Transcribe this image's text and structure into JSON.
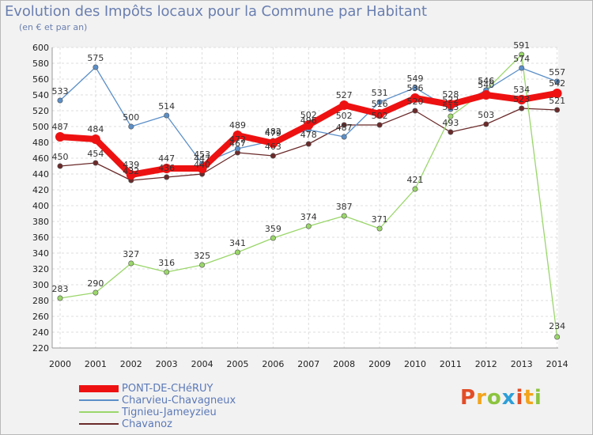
{
  "header": {
    "title": "Evolution des Impôts locaux pour la Commune par Habitant",
    "subtitle": "(en € et par an)"
  },
  "logo": {
    "text": "Proxiti",
    "letters": [
      {
        "ch": "P",
        "color": "#e24d27"
      },
      {
        "ch": "r",
        "color": "#f2a41c"
      },
      {
        "ch": "o",
        "color": "#8cc43f"
      },
      {
        "ch": "x",
        "color": "#2d9fd8"
      },
      {
        "ch": "i",
        "color": "#e24d27"
      },
      {
        "ch": "t",
        "color": "#f2a41c"
      },
      {
        "ch": "i",
        "color": "#8cc43f"
      }
    ]
  },
  "chart_data": {
    "type": "line",
    "title": "Evolution des Impôts locaux pour la Commune par Habitant",
    "subtitle": "(en € et par an)",
    "xlabel": "",
    "ylabel": "",
    "x": [
      "2000",
      "2001",
      "2002",
      "2003",
      "2004",
      "2005",
      "2006",
      "2007",
      "2008",
      "2009",
      "2010",
      "2011",
      "2012",
      "2013",
      "2014"
    ],
    "ylim": [
      220,
      600
    ],
    "yticks": [
      220,
      240,
      260,
      280,
      300,
      320,
      340,
      360,
      380,
      400,
      420,
      440,
      460,
      480,
      500,
      520,
      540,
      560,
      580,
      600
    ],
    "grid": true,
    "legend_position": "bottom-left",
    "series": [
      {
        "name": "PONT-DE-CHéRUY",
        "color": "#ee1111",
        "values": [
          487,
          484,
          439,
          447,
          447,
          489,
          479,
          502,
          527,
          516,
          536,
          528,
          540,
          534,
          542
        ]
      },
      {
        "name": "Charvieu-Chavagneux",
        "color": "#5b8fc8",
        "values": [
          533,
          575,
          500,
          514,
          453,
          472,
          482,
          496,
          487,
          531,
          549,
          522,
          546,
          574,
          557
        ]
      },
      {
        "name": "Tignieu-Jameyzieu",
        "color": "#9ad66a",
        "values": [
          283,
          290,
          327,
          316,
          325,
          341,
          359,
          374,
          387,
          371,
          421,
          513,
          546,
          591,
          234
        ]
      },
      {
        "name": "Chavanoz",
        "color": "#6b2a2a",
        "values": [
          450,
          454,
          432,
          436,
          440,
          467,
          463,
          478,
          502,
          502,
          520,
          493,
          503,
          523,
          521
        ]
      }
    ],
    "data_labels": [
      {
        "series": 0,
        "labels": [
          "487",
          "484",
          "439",
          "447",
          "447",
          "489",
          "479",
          "502",
          "527",
          "516",
          "536",
          "528",
          "540",
          "534",
          "542"
        ]
      },
      {
        "series": 1,
        "labels": [
          "533",
          "575",
          "500",
          "514",
          "453",
          "472",
          "482",
          "496",
          "487",
          "531",
          "549",
          "522",
          "546",
          "574",
          "557"
        ]
      },
      {
        "series": 2,
        "labels": [
          "283",
          "290",
          "327",
          "316",
          "325",
          "341",
          "359",
          "374",
          "387",
          "371",
          "421",
          "513",
          "546",
          "591",
          "234"
        ]
      },
      {
        "series": 3,
        "labels": [
          "450",
          "454",
          "432",
          "436",
          "440",
          "467",
          "463",
          "478",
          "502",
          "502",
          "520",
          "493",
          "503",
          "523",
          "521"
        ]
      }
    ]
  }
}
